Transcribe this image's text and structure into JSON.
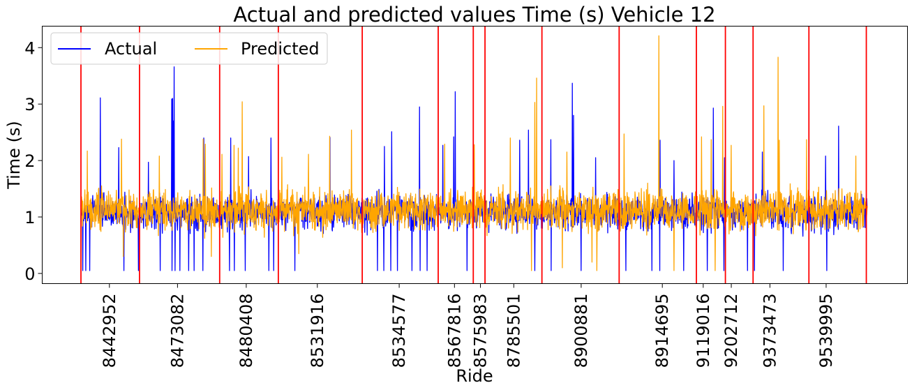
{
  "chart_data": {
    "type": "line",
    "title": "Actual and predicted values Time (s) Vehicle 12",
    "xlabel": "Ride",
    "ylabel": "Time (s)",
    "ylim": [
      -0.18,
      4.38
    ],
    "yticks": [
      0,
      1,
      2,
      3,
      4
    ],
    "xlim": [
      0,
      1000
    ],
    "ride_ticks": [
      {
        "x": 36.2,
        "label": "8442952"
      },
      {
        "x": 122.8,
        "label": "8473082"
      },
      {
        "x": 210.2,
        "label": "8480408"
      },
      {
        "x": 300.6,
        "label": "8531916"
      },
      {
        "x": 404.7,
        "label": "8534577"
      },
      {
        "x": 475.0,
        "label": "8567816"
      },
      {
        "x": 508.0,
        "label": "8575983"
      },
      {
        "x": 550.4,
        "label": "8785501"
      },
      {
        "x": 636.1,
        "label": "8900881"
      },
      {
        "x": 739.3,
        "label": "8914695"
      },
      {
        "x": 791.3,
        "label": "9119016"
      },
      {
        "x": 827.0,
        "label": "9202712"
      },
      {
        "x": 876.1,
        "label": "9373473"
      },
      {
        "x": 947.6,
        "label": "9539995"
      }
    ],
    "ride_boundaries": [
      0.0,
      74.5,
      176.4,
      251.0,
      357.7,
      454.3,
      498.9,
      513.8,
      586.2,
      684.4,
      782.6,
      819.5,
      854.7,
      925.7,
      998.7
    ],
    "series": [
      {
        "name": "Actual",
        "color": "#0000ff",
        "baseline": 1.08,
        "spread": 0.22,
        "spikes": [
          [
            24.5,
            3.11
          ],
          [
            48,
            2.23
          ],
          [
            85.7,
            1.97
          ],
          [
            115.3,
            3.09
          ],
          [
            116.4,
            3.1
          ],
          [
            117.9,
            2.7
          ],
          [
            118.5,
            3.66
          ],
          [
            156.4,
            2.4
          ],
          [
            190.5,
            2.4
          ],
          [
            213.2,
            2.07
          ],
          [
            241.8,
            2.4
          ],
          [
            316.6,
            2.41
          ],
          [
            386.1,
            2.25
          ],
          [
            395,
            2.51
          ],
          [
            430.7,
            2.95
          ],
          [
            460.1,
            2.27
          ],
          [
            473.9,
            2.42
          ],
          [
            476.1,
            3.22
          ],
          [
            558,
            2.36
          ],
          [
            569.1,
            2.54
          ],
          [
            597.5,
            2.37
          ],
          [
            624.8,
            3.37
          ],
          [
            626.5,
            2.8
          ],
          [
            654.4,
            2.05
          ],
          [
            736.5,
            2.36
          ],
          [
            754.1,
            2.0
          ],
          [
            804.1,
            2.93
          ],
          [
            818.2,
            2.05
          ],
          [
            866.6,
            2.15
          ],
          [
            946.9,
            2.08
          ],
          [
            963.4,
            2.61
          ]
        ],
        "drops": [
          [
            2.5,
            0.05
          ],
          [
            6,
            0.05
          ],
          [
            11,
            0.05
          ],
          [
            54.5,
            0.05
          ],
          [
            73,
            0.05
          ],
          [
            101,
            0.05
          ],
          [
            116,
            0.05
          ],
          [
            119.5,
            0.05
          ],
          [
            126,
            0.05
          ],
          [
            137.1,
            0.05
          ],
          [
            144,
            0.05
          ],
          [
            155,
            0.05
          ],
          [
            189,
            0.05
          ],
          [
            195,
            0.05
          ],
          [
            209,
            0.05
          ],
          [
            239,
            0.05
          ],
          [
            245,
            0.05
          ],
          [
            272,
            0.05
          ],
          [
            377,
            0.05
          ],
          [
            385,
            0.05
          ],
          [
            394,
            0.05
          ],
          [
            402.5,
            0.05
          ],
          [
            421,
            0.05
          ],
          [
            431.5,
            0.05
          ],
          [
            440,
            0.05
          ],
          [
            491,
            0.05
          ],
          [
            577,
            0.05
          ],
          [
            598,
            0.05
          ],
          [
            636,
            0.05
          ],
          [
            693,
            0.05
          ],
          [
            726,
            0.05
          ],
          [
            736,
            0.05
          ],
          [
            766.5,
            0.05
          ],
          [
            796.5,
            0.05
          ],
          [
            817.5,
            0.05
          ],
          [
            847.5,
            0.05
          ],
          [
            856.5,
            0.05
          ],
          [
            893,
            0.05
          ],
          [
            948.4,
            0.05
          ]
        ]
      },
      {
        "name": "Predicted",
        "color": "#ffa500",
        "baseline": 1.12,
        "spread": 0.26,
        "spikes": [
          [
            8,
            2.17
          ],
          [
            51.5,
            2.38
          ],
          [
            99.5,
            2.08
          ],
          [
            155.5,
            2.38
          ],
          [
            158,
            2.29
          ],
          [
            179.4,
            2.11
          ],
          [
            194.5,
            2.27
          ],
          [
            200,
            2.22
          ],
          [
            205,
            3.04
          ],
          [
            255.5,
            2.06
          ],
          [
            289.3,
            2.11
          ],
          [
            316.1,
            2.43
          ],
          [
            344,
            2.54
          ],
          [
            462.5,
            2.29
          ],
          [
            500,
            2.28
          ],
          [
            545.9,
            2.4
          ],
          [
            577,
            3.03
          ],
          [
            579.6,
            3.46
          ],
          [
            618,
            2.15
          ],
          [
            690.5,
            2.47
          ],
          [
            735,
            4.21
          ],
          [
            789,
            2.42
          ],
          [
            801.4,
            2.37
          ],
          [
            816,
            2.96
          ],
          [
            827,
            2.27
          ],
          [
            868.5,
            2.97
          ],
          [
            886.4,
            3.83
          ],
          [
            888,
            2.36
          ],
          [
            922.5,
            2.37
          ],
          [
            985.2,
            2.08
          ]
        ],
        "drops": [
          [
            54,
            0.3
          ],
          [
            166,
            0.3
          ],
          [
            277,
            0.35
          ],
          [
            573,
            0.05
          ],
          [
            612,
            0.1
          ],
          [
            650,
            0.2
          ],
          [
            656,
            0.05
          ],
          [
            754,
            0.05
          ],
          [
            806.5,
            0.05
          ]
        ]
      }
    ],
    "legend": {
      "position": "top-left",
      "columns": 2
    }
  }
}
